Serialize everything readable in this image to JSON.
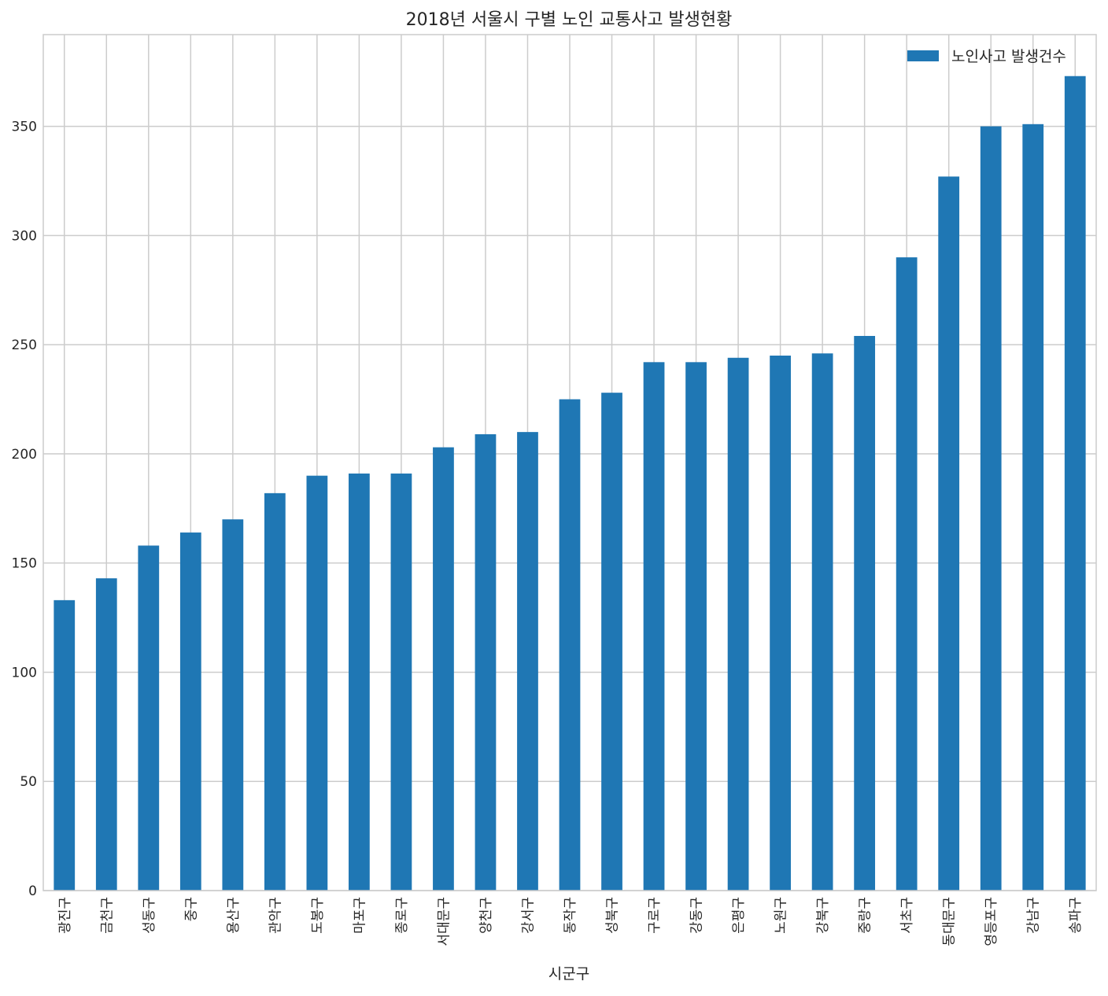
{
  "chart_data": {
    "type": "bar",
    "title": "2018년 서울시 구별 노인 교통사고 발생현황",
    "xlabel": "시군구",
    "ylabel": "",
    "categories": [
      "광진구",
      "금천구",
      "성동구",
      "중구",
      "용산구",
      "관악구",
      "도봉구",
      "마포구",
      "종로구",
      "서대문구",
      "양천구",
      "강서구",
      "동작구",
      "성북구",
      "구로구",
      "강동구",
      "은평구",
      "노원구",
      "강북구",
      "중랑구",
      "서초구",
      "동대문구",
      "영등포구",
      "강남구",
      "송파구"
    ],
    "series": [
      {
        "name": "노인사고 발생건수",
        "values": [
          133,
          143,
          158,
          164,
          170,
          182,
          190,
          191,
          191,
          203,
          209,
          210,
          225,
          228,
          242,
          242,
          244,
          245,
          246,
          254,
          290,
          327,
          350,
          351,
          373
        ],
        "color": "#1f77b4"
      }
    ],
    "ylim": [
      0,
      392
    ],
    "yticks": [
      0,
      50,
      100,
      150,
      200,
      250,
      300,
      350
    ],
    "grid": true,
    "legend_position": "top-right",
    "tick_label_rotation": "vertical"
  }
}
